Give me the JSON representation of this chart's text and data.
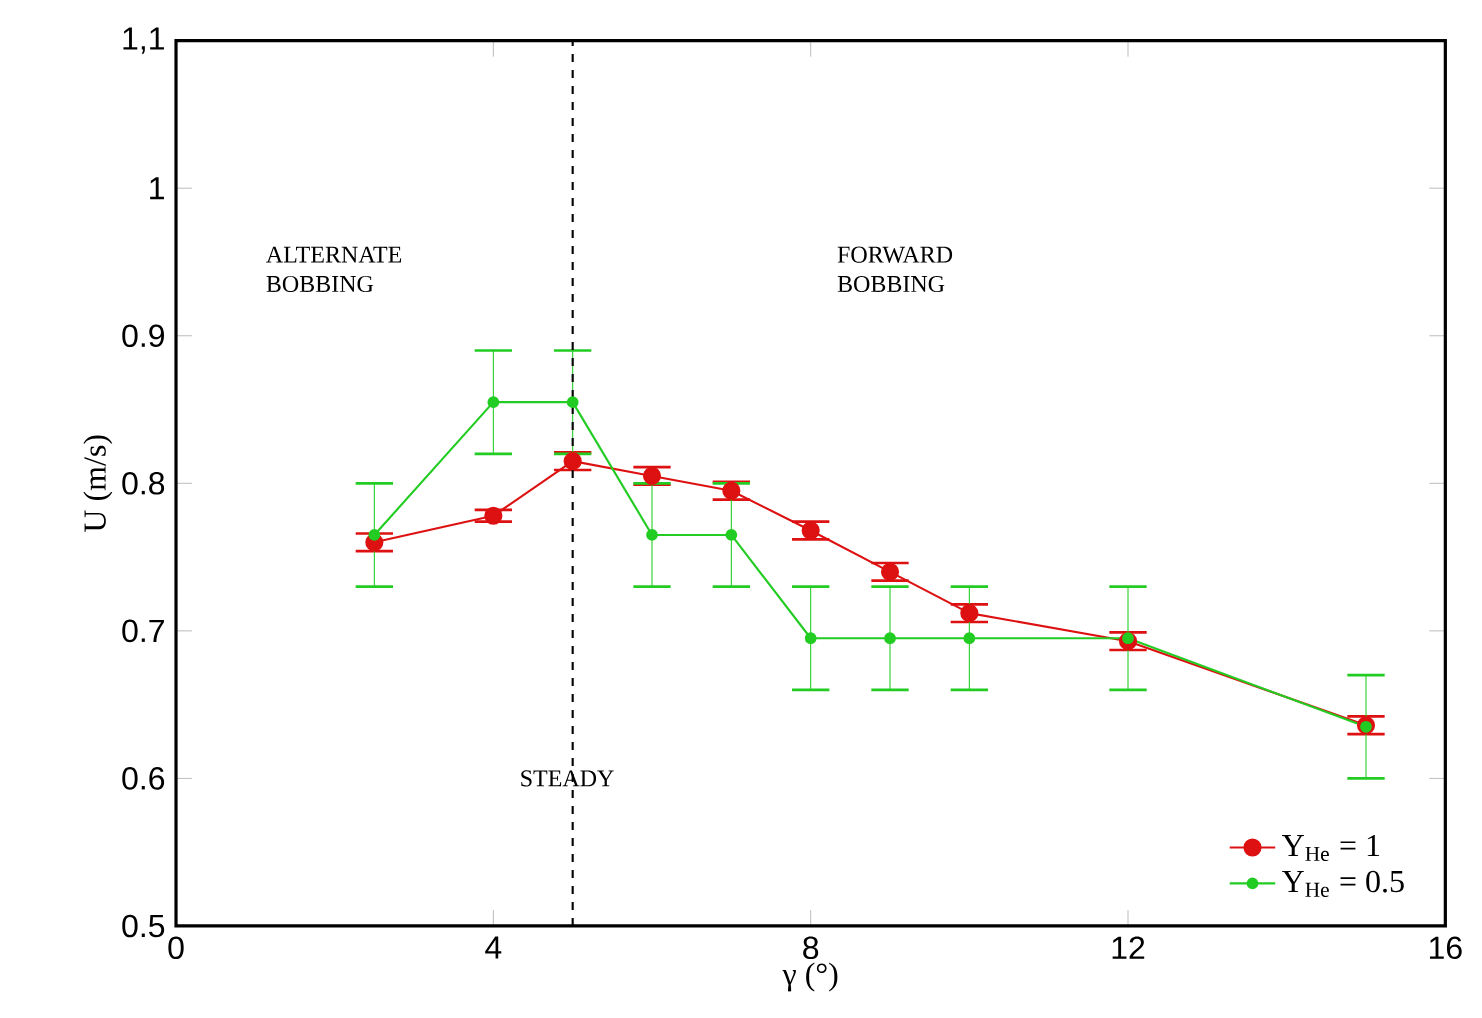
{
  "chart_data": {
    "type": "line",
    "xlabel": "γ (°)",
    "ylabel": "U (m/s)",
    "x": [
      2.5,
      4,
      5,
      6,
      7,
      8,
      9,
      10,
      12,
      15
    ],
    "series": [
      {
        "name": "Y$_{He}$ = 1",
        "color": "#dd1111",
        "values": [
          0.76,
          0.778,
          0.815,
          0.805,
          0.795,
          0.768,
          0.74,
          0.712,
          0.693,
          0.636
        ],
        "errors": [
          0.006,
          0.004,
          0.006,
          0.006,
          0.006,
          0.006,
          0.006,
          0.006,
          0.006,
          0.006
        ]
      },
      {
        "name": "Y$_{He}$ = 0.5",
        "color": "#22cc22",
        "values": [
          0.765,
          0.855,
          0.855,
          0.765,
          0.765,
          0.695,
          0.695,
          0.695,
          0.695,
          0.635
        ],
        "errors": [
          0.035,
          0.035,
          0.035,
          0.035,
          0.035,
          0.035,
          0.035,
          0.035,
          0.035,
          0.035
        ]
      }
    ],
    "xlim": [
      0,
      16
    ],
    "xticks": [
      0,
      4,
      8,
      12,
      16
    ],
    "ylim": [
      0.5,
      1.1
    ],
    "yticks": [
      0.5,
      0.6,
      0.7,
      0.8,
      0.9,
      {
        "value": 1,
        "label": "1"
      },
      {
        "value": 1.1,
        "label": "1,1"
      }
    ],
    "ref_lines": [
      {
        "axis": "x",
        "value": 5,
        "color": "#000000",
        "line_style": "dashed"
      }
    ],
    "annotations": [
      "ALTERNATE BOBBING",
      "FORWARD BOBBING",
      "STEADY"
    ],
    "legend": "bottom right",
    "marker": "circle",
    "line_style": "solid",
    "grid": false
  }
}
